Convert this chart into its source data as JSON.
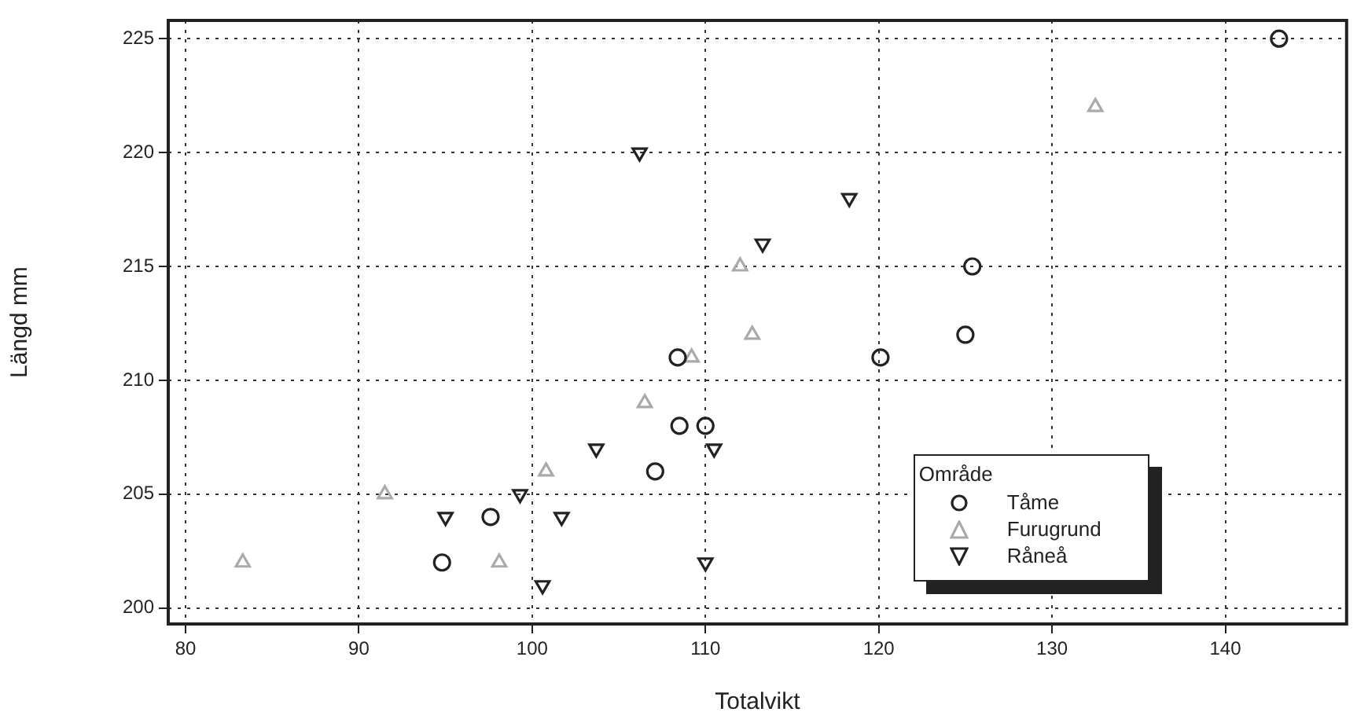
{
  "chart_data": {
    "type": "scatter",
    "xlabel": "Totalvikt",
    "ylabel": "Längd mm",
    "legend_title": "Område",
    "xlim": [
      79,
      147
    ],
    "xticks": [
      80,
      90,
      100,
      110,
      120,
      130,
      140
    ],
    "ylim": [
      199.3,
      225.8
    ],
    "yticks": [
      200,
      205,
      210,
      215,
      220,
      225
    ],
    "grid": true,
    "legend": "bottom right",
    "series": [
      {
        "name": "Tåme",
        "color": "#222222",
        "marker": "circle",
        "x": [
          94.8,
          97.6,
          107.1,
          108.4,
          108.5,
          110,
          120.1,
          125,
          125.4,
          143.1
        ],
        "values": [
          202,
          204,
          206,
          211,
          208,
          208,
          211,
          212,
          215,
          225
        ]
      },
      {
        "name": "Furugrund",
        "color": "#aaaaaa",
        "marker": "triangle",
        "x": [
          83.3,
          91.5,
          98.1,
          100.8,
          106.5,
          109.2,
          112,
          112.7,
          132.5
        ],
        "values": [
          202,
          205,
          202,
          206,
          209,
          211,
          215,
          212,
          222
        ]
      },
      {
        "name": "Råneå",
        "color": "#222222",
        "marker": "triangle-down",
        "x": [
          95,
          99.3,
          101.7,
          100.6,
          103.7,
          106.2,
          110,
          110.5,
          113.3,
          118.3
        ],
        "values": [
          204,
          205,
          204,
          201,
          207,
          220,
          202,
          207,
          216,
          218
        ]
      }
    ]
  }
}
